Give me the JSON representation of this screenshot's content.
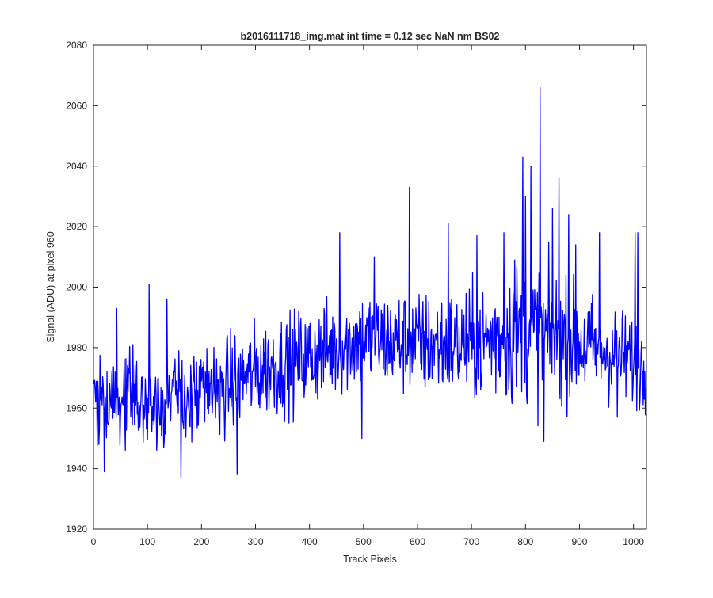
{
  "chart_data": {
    "type": "line",
    "title": "b2016111718_img.mat int time = 0.12 sec  NaN nm BS02",
    "xlabel": "Track Pixels",
    "ylabel": "Signal (ADU) at pixel 960",
    "xlim": [
      0,
      1024
    ],
    "ylim": [
      1920,
      2080
    ],
    "xticks": [
      0,
      100,
      200,
      300,
      400,
      500,
      600,
      700,
      800,
      900,
      1000
    ],
    "yticks": [
      1920,
      1940,
      1960,
      1980,
      2000,
      2020,
      2040,
      2060,
      2080
    ],
    "grid": false,
    "box": true,
    "legend": "none",
    "series_color": "#0000ff",
    "series": [
      {
        "x_start": 1,
        "x_step": 1,
        "points": 1024,
        "trend_anchors": [
          [
            0,
            1962
          ],
          [
            100,
            1962
          ],
          [
            200,
            1964
          ],
          [
            300,
            1972
          ],
          [
            400,
            1977
          ],
          [
            500,
            1983
          ],
          [
            600,
            1981
          ],
          [
            700,
            1981
          ],
          [
            800,
            1985
          ],
          [
            900,
            1981
          ],
          [
            1000,
            1976
          ],
          [
            1024,
            1972
          ]
        ],
        "amplitude_anchors": [
          [
            0,
            7
          ],
          [
            300,
            8
          ],
          [
            500,
            8
          ],
          [
            700,
            9
          ],
          [
            800,
            12
          ],
          [
            900,
            9
          ],
          [
            1024,
            7
          ]
        ],
        "peaks": [
          [
            43,
            1993
          ],
          [
            103,
            2001
          ],
          [
            136,
            1996
          ],
          [
            162,
            1937
          ],
          [
            20,
            1939
          ],
          [
            10,
            1948
          ],
          [
            266,
            1938
          ],
          [
            456,
            2018
          ],
          [
            497,
            1950
          ],
          [
            520,
            2010
          ],
          [
            585,
            2033
          ],
          [
            657,
            2021
          ],
          [
            710,
            2017
          ],
          [
            760,
            2018
          ],
          [
            780,
            2009
          ],
          [
            795,
            2043
          ],
          [
            800,
            2030
          ],
          [
            810,
            2040
          ],
          [
            827,
            2066
          ],
          [
            834,
            1949
          ],
          [
            850,
            2026
          ],
          [
            862,
            2036
          ],
          [
            880,
            2024
          ],
          [
            893,
            2014
          ],
          [
            937,
            2018
          ],
          [
            1003,
            2018
          ],
          [
            1008,
            2018
          ],
          [
            970,
            1957
          ],
          [
            1020,
            1963
          ]
        ]
      }
    ]
  }
}
